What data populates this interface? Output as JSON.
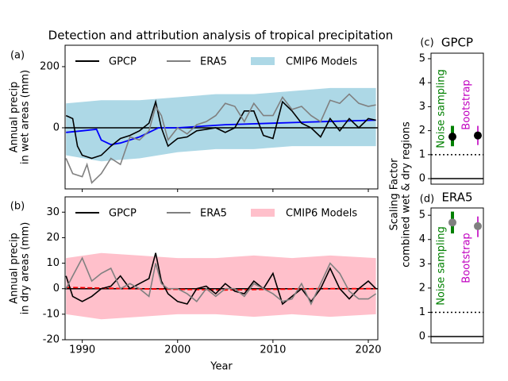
{
  "chart_data": [
    {
      "type": "timeseries",
      "panel_label": "(a)",
      "title": "Detection and attribution analysis of tropical precipitation",
      "ylabel": [
        "Annual precip",
        "in wet areas (mm)"
      ],
      "xlim": [
        1988.2,
        2021
      ],
      "xticks": [
        1990,
        2000,
        2010,
        2020
      ],
      "show_xtick_labels": false,
      "ylim": [
        -200,
        270
      ],
      "yticks": [
        0,
        200
      ],
      "reflines": [
        0
      ],
      "series": [
        {
          "name": "GPCP",
          "color": "#000000",
          "x": [
            1988.3,
            1989,
            1989.5,
            1990,
            1991,
            1992,
            1993,
            1994,
            1995,
            1996,
            1997,
            1997.7,
            1998.3,
            1999,
            2000,
            2001,
            2002,
            2003,
            2004,
            2005,
            2006,
            2007,
            2008,
            2009,
            2010,
            2011,
            2012,
            2013,
            2014,
            2015,
            2016,
            2017,
            2018,
            2019,
            2020,
            2020.8
          ],
          "values": [
            40,
            30,
            -60,
            -90,
            -100,
            -90,
            -60,
            -35,
            -25,
            -10,
            15,
            85,
            0,
            -60,
            -35,
            -30,
            -10,
            -5,
            0,
            -15,
            0,
            55,
            55,
            -25,
            -35,
            85,
            55,
            15,
            0,
            -30,
            30,
            -10,
            30,
            0,
            30,
            25
          ]
        },
        {
          "name": "ERA5",
          "color": "#808080",
          "x": [
            1988.3,
            1989,
            1990,
            1990.5,
            1991,
            1992,
            1993,
            1994,
            1995,
            1996,
            1997,
            1997.7,
            1998.3,
            1999,
            2000,
            2001,
            2002,
            2003,
            2004,
            2005,
            2006,
            2007,
            2008,
            2009,
            2010,
            2011,
            2012,
            2013,
            2014,
            2015,
            2016,
            2017,
            2018,
            2019,
            2020,
            2020.8
          ],
          "values": [
            -100,
            -150,
            -160,
            -120,
            -180,
            -150,
            -100,
            -120,
            -30,
            -40,
            -10,
            70,
            40,
            -40,
            0,
            -20,
            10,
            20,
            40,
            80,
            70,
            20,
            80,
            40,
            40,
            100,
            60,
            70,
            40,
            20,
            90,
            80,
            110,
            80,
            70,
            75
          ]
        }
      ],
      "band": {
        "name": "CMIP6 Models",
        "color": "#add8e6",
        "x": [
          1988.3,
          1992,
          1996,
          2000,
          2004,
          2008,
          2012,
          2016,
          2020.8
        ],
        "lower": [
          -90,
          -110,
          -100,
          -80,
          -70,
          -70,
          -60,
          -60,
          -60
        ],
        "upper": [
          80,
          90,
          90,
          100,
          110,
          110,
          120,
          130,
          130
        ]
      },
      "mean": {
        "color": "#0000ff",
        "dashed": false,
        "x": [
          1988.3,
          1990,
          1991.5,
          1992,
          1993,
          1994,
          1996,
          1997,
          1998,
          2000,
          2005,
          2010,
          2015,
          2020.8
        ],
        "values": [
          -15,
          -10,
          -5,
          -40,
          -55,
          -50,
          -30,
          -15,
          0,
          0,
          10,
          15,
          20,
          25
        ]
      }
    },
    {
      "type": "timeseries",
      "panel_label": "(b)",
      "xlabel": "Year",
      "ylabel": [
        "Annual precip",
        "in dry areas (mm)"
      ],
      "xlim": [
        1988.2,
        2021
      ],
      "xticks": [
        1990,
        2000,
        2010,
        2020
      ],
      "show_xtick_labels": true,
      "ylim": [
        -20,
        36
      ],
      "yticks": [
        -20,
        -10,
        0,
        10,
        20,
        30
      ],
      "reflines": [
        0
      ],
      "series": [
        {
          "name": "GPCP",
          "color": "#000000",
          "x": [
            1988.3,
            1989,
            1990,
            1991,
            1992,
            1993,
            1994,
            1995,
            1996,
            1997,
            1997.7,
            1998.3,
            1999,
            2000,
            2001,
            2002,
            2003,
            2004,
            2005,
            2006,
            2007,
            2008,
            2009,
            2010,
            2011,
            2012,
            2013,
            2014,
            2015,
            2016,
            2017,
            2018,
            2019,
            2020,
            2020.8
          ],
          "values": [
            5,
            -3,
            -5,
            -3,
            0,
            1,
            5,
            0,
            2,
            4,
            14,
            3,
            -2,
            -5,
            -6,
            0,
            1,
            -2,
            2,
            -1,
            -2,
            3,
            0,
            6,
            -6,
            -3,
            0,
            -5,
            0,
            8,
            0,
            -4,
            0,
            3,
            0
          ]
        },
        {
          "name": "ERA5",
          "color": "#808080",
          "x": [
            1988.3,
            1989,
            1990,
            1991,
            1992,
            1993,
            1994,
            1995,
            1996,
            1997,
            1997.7,
            1998.3,
            1999,
            2000,
            2001,
            2002,
            2003,
            2004,
            2005,
            2006,
            2007,
            2008,
            2009,
            2010,
            2011,
            2012,
            2013,
            2014,
            2015,
            2016,
            2017,
            2018,
            2019,
            2020,
            2020.8
          ],
          "values": [
            0,
            5,
            12,
            3,
            6,
            8,
            0,
            2,
            0,
            -3,
            10,
            2,
            0,
            0,
            -2,
            -5,
            0,
            -3,
            0,
            0,
            -3,
            2,
            0,
            -2,
            -5,
            -4,
            2,
            -6,
            2,
            10,
            6,
            -1,
            -4,
            -4,
            -2
          ]
        }
      ],
      "band": {
        "name": "CMIP6 Models",
        "color": "#ffc0cb",
        "x": [
          1988.3,
          1992,
          1996,
          2000,
          2004,
          2008,
          2012,
          2016,
          2020.8
        ],
        "lower": [
          -10,
          -12,
          -11,
          -10,
          -10,
          -11,
          -10,
          -11,
          -10
        ],
        "upper": [
          12,
          14,
          13,
          12,
          12,
          13,
          12,
          13,
          12
        ]
      },
      "mean": {
        "color": "#ff0000",
        "dashed": true,
        "x": [
          1988.3,
          1995,
          2005,
          2015,
          2020.8
        ],
        "values": [
          0.5,
          0,
          -0.5,
          0,
          0
        ]
      }
    },
    {
      "type": "errorbar",
      "panel_label": "(c)",
      "title": "GPCP",
      "ylabel": [
        "Scaling Factor",
        "combined wet & dry regions"
      ],
      "ylim": [
        -0.23,
        5.23
      ],
      "yticks": [
        0,
        1,
        2,
        3,
        4,
        5
      ],
      "reflines": [
        0,
        1
      ],
      "categories": [
        "Noise sampling",
        "Bootstrap"
      ],
      "label_colors": [
        "#008000",
        "#c000c0"
      ],
      "values": [
        1.75,
        1.8
      ],
      "low": [
        1.35,
        1.4
      ],
      "high": [
        2.2,
        2.2
      ],
      "marker_color": "#000000"
    },
    {
      "type": "errorbar",
      "panel_label": "(d)",
      "title": "ERA5",
      "ylim": [
        -0.26,
        5.3
      ],
      "yticks": [
        0,
        1,
        2,
        3,
        4,
        5
      ],
      "reflines": [
        0,
        1
      ],
      "categories": [
        "Noise sampling",
        "Bootstrap"
      ],
      "label_colors": [
        "#008000",
        "#c000c0"
      ],
      "values": [
        4.7,
        4.55
      ],
      "low": [
        4.25,
        4.1
      ],
      "high": [
        5.15,
        4.95
      ],
      "marker_color": "#808080"
    }
  ]
}
